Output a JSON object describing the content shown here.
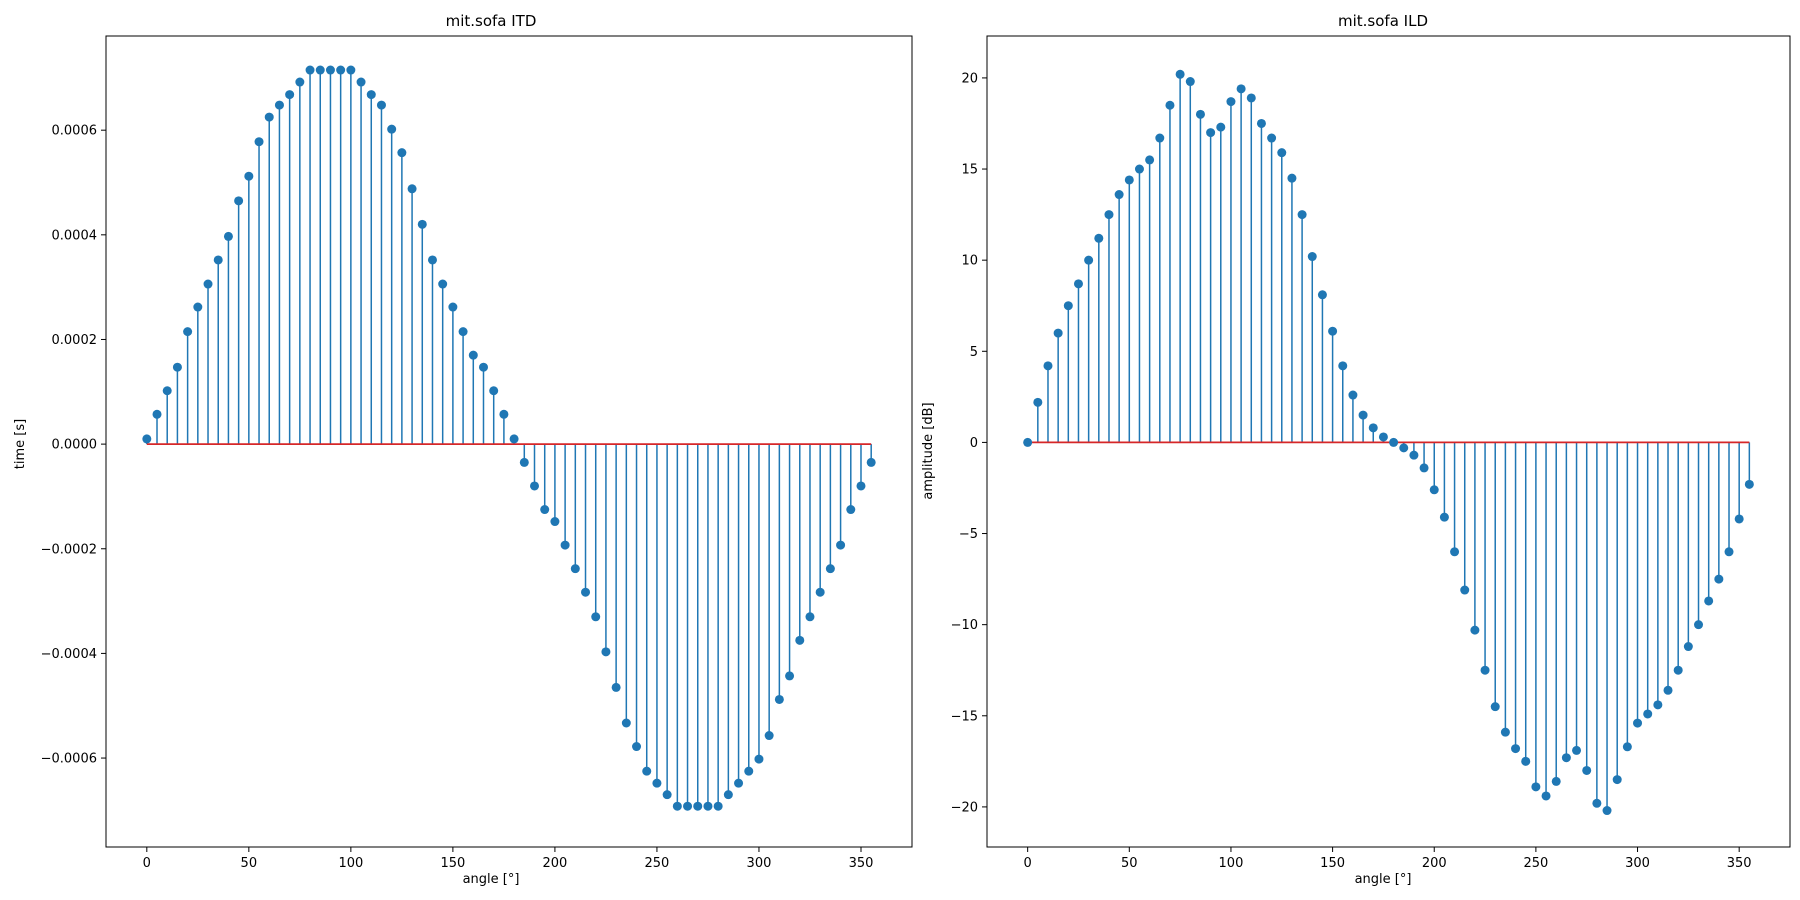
{
  "colors": {
    "stem": "#1f77b4",
    "baseline": "#d62728",
    "axes": "#000000"
  },
  "chart_data": [
    {
      "type": "stem",
      "title": "mit.sofa ITD",
      "xlabel": "angle [°]",
      "ylabel": "time [s]",
      "xlim": [
        -20,
        375
      ],
      "ylim": [
        -0.00077,
        0.00078
      ],
      "xticks": [
        0,
        50,
        100,
        150,
        200,
        250,
        300,
        350
      ],
      "xtick_labels": [
        "0",
        "50",
        "100",
        "150",
        "200",
        "250",
        "300",
        "350"
      ],
      "yticks": [
        -0.0006,
        -0.0004,
        -0.0002,
        0,
        0.0002,
        0.0004,
        0.0006
      ],
      "ytick_labels": [
        "−0.0006",
        "−0.0004",
        "−0.0002",
        "0.0000",
        "0.0002",
        "0.0004",
        "0.0006"
      ],
      "baseline": 0,
      "x": [
        0,
        5,
        10,
        15,
        20,
        25,
        30,
        35,
        40,
        45,
        50,
        55,
        60,
        65,
        70,
        75,
        80,
        85,
        90,
        95,
        100,
        105,
        110,
        115,
        120,
        125,
        130,
        135,
        140,
        145,
        150,
        155,
        160,
        165,
        170,
        175,
        180,
        185,
        190,
        195,
        200,
        205,
        210,
        215,
        220,
        225,
        230,
        235,
        240,
        245,
        250,
        255,
        260,
        265,
        270,
        275,
        280,
        285,
        290,
        295,
        300,
        305,
        310,
        315,
        320,
        325,
        330,
        335,
        340,
        345,
        350,
        355
      ],
      "values": [
        1e-05,
        5.7e-05,
        0.000102,
        0.000147,
        0.000215,
        0.000262,
        0.000306,
        0.000352,
        0.000397,
        0.000465,
        0.000512,
        0.000578,
        0.000625,
        0.000648,
        0.000668,
        0.000692,
        0.000715,
        0.000715,
        0.000715,
        0.000715,
        0.000715,
        0.000692,
        0.000668,
        0.000648,
        0.000602,
        0.000557,
        0.000488,
        0.00042,
        0.000352,
        0.000306,
        0.000262,
        0.000215,
        0.00017,
        0.000147,
        0.000102,
        5.7e-05,
        1e-05,
        -3.5e-05,
        -8e-05,
        -0.000125,
        -0.000148,
        -0.000193,
        -0.000238,
        -0.000283,
        -0.00033,
        -0.000397,
        -0.000465,
        -0.000533,
        -0.000578,
        -0.000625,
        -0.000648,
        -0.00067,
        -0.000692,
        -0.000692,
        -0.000692,
        -0.000692,
        -0.000692,
        -0.00067,
        -0.000648,
        -0.000625,
        -0.000602,
        -0.000557,
        -0.000488,
        -0.000443,
        -0.000375,
        -0.00033,
        -0.000283,
        -0.000238,
        -0.000193,
        -0.000125,
        -8e-05,
        -3.5e-05
      ]
    },
    {
      "type": "stem",
      "title": "mit.sofa ILD",
      "xlabel": "angle [°]",
      "ylabel": "amplitude [dB]",
      "xlim": [
        -20,
        375
      ],
      "ylim": [
        -22.2,
        22.3
      ],
      "xticks": [
        0,
        50,
        100,
        150,
        200,
        250,
        300,
        350
      ],
      "xtick_labels": [
        "0",
        "50",
        "100",
        "150",
        "200",
        "250",
        "300",
        "350"
      ],
      "yticks": [
        -20,
        -15,
        -10,
        -5,
        0,
        5,
        10,
        15,
        20
      ],
      "ytick_labels": [
        "−20",
        "−15",
        "−10",
        "−5",
        "0",
        "5",
        "10",
        "15",
        "20"
      ],
      "baseline": 0,
      "x": [
        0,
        5,
        10,
        15,
        20,
        25,
        30,
        35,
        40,
        45,
        50,
        55,
        60,
        65,
        70,
        75,
        80,
        85,
        90,
        95,
        100,
        105,
        110,
        115,
        120,
        125,
        130,
        135,
        140,
        145,
        150,
        155,
        160,
        165,
        170,
        175,
        180,
        185,
        190,
        195,
        200,
        205,
        210,
        215,
        220,
        225,
        230,
        235,
        240,
        245,
        250,
        255,
        260,
        265,
        270,
        275,
        280,
        285,
        290,
        295,
        300,
        305,
        310,
        315,
        320,
        325,
        330,
        335,
        340,
        345,
        350,
        355
      ],
      "values": [
        0,
        2.2,
        4.2,
        6.0,
        7.5,
        8.7,
        10.0,
        11.2,
        12.5,
        13.6,
        14.4,
        15.0,
        15.5,
        16.7,
        18.5,
        20.2,
        19.8,
        18.0,
        17.0,
        17.3,
        18.7,
        19.4,
        18.9,
        17.5,
        16.7,
        15.9,
        14.5,
        12.5,
        10.2,
        8.1,
        6.1,
        4.2,
        2.6,
        1.5,
        0.8,
        0.3,
        0.0,
        -0.3,
        -0.7,
        -1.4,
        -2.6,
        -4.1,
        -6.0,
        -8.1,
        -10.3,
        -12.5,
        -14.5,
        -15.9,
        -16.8,
        -17.5,
        -18.9,
        -19.4,
        -18.6,
        -17.3,
        -16.9,
        -18.0,
        -19.8,
        -20.2,
        -18.5,
        -16.7,
        -15.4,
        -14.9,
        -14.4,
        -13.6,
        -12.5,
        -11.2,
        -10.0,
        -8.7,
        -7.5,
        -6.0,
        -4.2,
        -2.3
      ]
    }
  ]
}
